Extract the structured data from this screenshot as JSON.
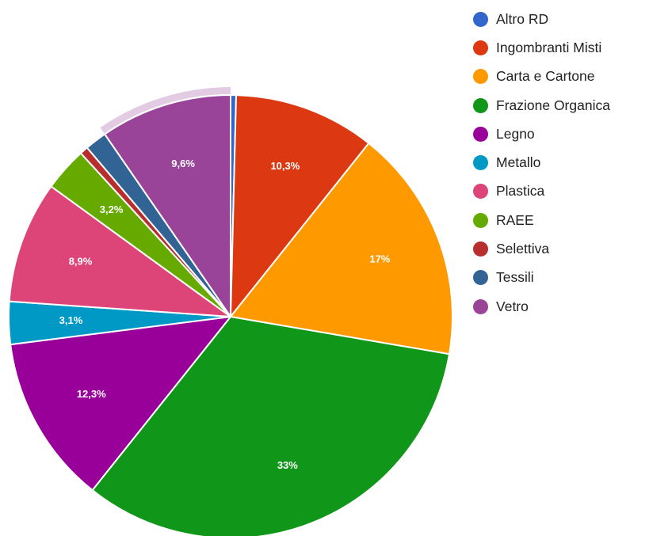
{
  "chart_data": {
    "type": "pie",
    "title": "",
    "slices": [
      {
        "name": "Altro RD",
        "value": 0.4,
        "label": "",
        "color": "#3366cc"
      },
      {
        "name": "Ingombranti Misti",
        "value": 10.3,
        "label": "10,3%",
        "color": "#dc3912"
      },
      {
        "name": "Carta e Cartone",
        "value": 17,
        "label": "17%",
        "color": "#ff9900"
      },
      {
        "name": "Frazione Organica",
        "value": 33,
        "label": "33%",
        "color": "#109618"
      },
      {
        "name": "Legno",
        "value": 12.3,
        "label": "12,3%",
        "color": "#990099"
      },
      {
        "name": "Metallo",
        "value": 3.1,
        "label": "3,1%",
        "color": "#0099c6"
      },
      {
        "name": "Plastica",
        "value": 8.9,
        "label": "8,9%",
        "color": "#dd4477"
      },
      {
        "name": "RAEE",
        "value": 3.2,
        "label": "3,2%",
        "color": "#66aa00"
      },
      {
        "name": "Selettiva",
        "value": 0.6,
        "label": "",
        "color": "#b82e2e"
      },
      {
        "name": "Tessili",
        "value": 1.6,
        "label": "",
        "color": "#316395"
      },
      {
        "name": "Vetro",
        "value": 9.6,
        "label": "9,6%",
        "color": "#994499",
        "highlighted": true
      }
    ],
    "legend": {
      "position": "right"
    }
  }
}
